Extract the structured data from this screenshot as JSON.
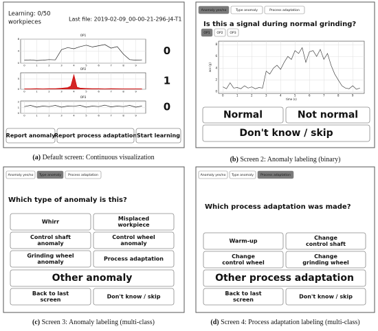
{
  "panel_a": {
    "learning": "Learning: 0/50",
    "learning_unit": "workpieces",
    "last_file": "Last file: 2019-02-09_00-00-21-296-J4-T1",
    "charts": [
      {
        "title": "OP1",
        "xlim": [
          -0.3,
          9.8
        ],
        "xticks": [
          0,
          1,
          2,
          3,
          4,
          5,
          6,
          7,
          8,
          9
        ],
        "ylim": [
          0,
          8
        ],
        "yticks": [
          0,
          4,
          8
        ],
        "grid": true,
        "color": "#222222",
        "area": false,
        "x": [
          0,
          0.5,
          1,
          1.5,
          2,
          2.5,
          3,
          3.5,
          4,
          4.5,
          5,
          5.5,
          6,
          6.5,
          7,
          7.5,
          8,
          8.5,
          9,
          9.5
        ],
        "values": [
          1,
          1.1,
          0.9,
          1,
          1.2,
          1.1,
          4.5,
          5.2,
          4.8,
          5.5,
          6,
          5.4,
          5.8,
          6.2,
          5,
          5.5,
          3,
          1.2,
          1,
          1.1
        ],
        "count": 0,
        "count_color": "#2e8b2e"
      },
      {
        "title": "OP2",
        "xlim": [
          -0.3,
          9.8
        ],
        "xticks": [
          0,
          1,
          2,
          3,
          4,
          5,
          6,
          7,
          8,
          9
        ],
        "ylim": [
          0,
          8
        ],
        "yticks": [
          0,
          5
        ],
        "grid": true,
        "color": "#cc0000",
        "area": true,
        "x": [
          0,
          0.5,
          1,
          1.5,
          2,
          2.5,
          3,
          3.5,
          3.75,
          4,
          4.25,
          4.5,
          5,
          5.5,
          6,
          6.5,
          7,
          8,
          9,
          9.5
        ],
        "values": [
          0.2,
          0.2,
          0.3,
          0.2,
          0.3,
          0.3,
          0.5,
          0.8,
          1.5,
          7,
          1,
          0.6,
          0.4,
          0.3,
          0.3,
          0.2,
          0.3,
          0.2,
          0.2,
          0.2
        ],
        "count": 1,
        "count_color": "#d62020"
      },
      {
        "title": "OP3",
        "xlim": [
          -0.3,
          9.8
        ],
        "xticks": [
          0,
          1,
          2,
          3,
          4,
          5,
          6,
          7,
          8,
          9
        ],
        "ylim": [
          0,
          2.2
        ],
        "yticks": [
          0,
          1,
          2
        ],
        "grid": true,
        "color": "#222222",
        "area": false,
        "x": [
          0,
          0.5,
          1,
          1.5,
          2,
          2.5,
          3,
          3.5,
          4,
          4.5,
          5,
          5.5,
          6,
          6.5,
          7,
          7.5,
          8,
          8.5,
          9,
          9.5
        ],
        "values": [
          1.2,
          1.4,
          1.1,
          1.3,
          1.2,
          1.4,
          1.1,
          1.3,
          1.25,
          1.4,
          1.1,
          1.3,
          1.2,
          1.45,
          1.15,
          1.3,
          1.2,
          1.4,
          1.1,
          1.3
        ],
        "count": 0,
        "count_color": "#2e8b2e"
      }
    ],
    "buttons": [
      "Report anomaly",
      "Report process adaptation",
      "Start learning"
    ],
    "caption": {
      "label": "(a)",
      "text": "Default screen: Continuous visualization"
    }
  },
  "panel_b": {
    "tabs": [
      "Anomaly yes/no",
      "Type anomaly",
      "Process adaptation"
    ],
    "selected_tab": 0,
    "question": "Is this a signal during normal grinding?",
    "op_tabs": [
      "OP1",
      "OP2",
      "OP3"
    ],
    "selected_op": 0,
    "chart": {
      "xlim": [
        -0.3,
        9.8
      ],
      "xticks": [
        0,
        1,
        2,
        3,
        4,
        5,
        6,
        7,
        8,
        9
      ],
      "ylim": [
        -0.3,
        8.6
      ],
      "yticks": [
        0,
        2,
        4,
        6,
        8
      ],
      "grid": true,
      "color": "#444444",
      "area": false,
      "x_label": "time (s)",
      "y_label": "acc (g)",
      "x": [
        0,
        0.25,
        0.5,
        0.75,
        1,
        1.25,
        1.5,
        1.75,
        2,
        2.25,
        2.5,
        2.75,
        3,
        3.25,
        3.5,
        3.75,
        4,
        4.25,
        4.5,
        4.75,
        5,
        5.25,
        5.5,
        5.75,
        6,
        6.25,
        6.5,
        6.75,
        7,
        7.25,
        7.5,
        7.75,
        8,
        8.25,
        8.5,
        8.75,
        9,
        9.25,
        9.5
      ],
      "values": [
        0.8,
        0.5,
        1.5,
        0.6,
        0.7,
        0.5,
        1,
        0.6,
        0.8,
        0.5,
        0.7,
        0.6,
        3.5,
        3,
        4,
        4.5,
        3.8,
        5,
        6,
        5.5,
        7,
        6.5,
        7.5,
        5,
        6.8,
        7,
        6,
        7.2,
        5.5,
        6.5,
        4.5,
        3,
        2,
        1,
        0.6,
        0.5,
        1,
        0.4,
        0.6
      ]
    },
    "buttons": [
      "Normal",
      "Not normal"
    ],
    "big_button": "Don't know / skip",
    "caption": {
      "label": "(b)",
      "text": "Screen 2: Anomaly labeling (binary)"
    }
  },
  "panel_c": {
    "tabs": [
      "Anomaly yes/no",
      "Type anomaly",
      "Process adaptation"
    ],
    "selected_tab": 1,
    "question": "Which type of anomaly is this?",
    "buttons": [
      [
        "Whirr"
      ],
      [
        "Misplaced",
        "workpiece"
      ],
      [
        "Control shaft",
        "anomaly"
      ],
      [
        "Control wheel",
        "anomaly"
      ],
      [
        "Grinding wheel",
        "anomaly"
      ],
      [
        "Process adaptation"
      ]
    ],
    "big_button": "Other anomaly",
    "bottom_buttons": [
      [
        "Back to last",
        "screen"
      ],
      [
        "Don't know / skip"
      ]
    ],
    "caption": {
      "label": "(c)",
      "text": "Screen 3: Anomaly labeling (multi-class)"
    }
  },
  "panel_d": {
    "tabs": [
      "Anomaly yes/no",
      "Type anomaly",
      "Process adaptation"
    ],
    "selected_tab": 2,
    "question": "Which process adaptation was made?",
    "buttons": [
      [
        "Warm-up"
      ],
      [
        "Change",
        "control shaft"
      ],
      [
        "Change",
        "control wheel"
      ],
      [
        "Change",
        "grinding wheel"
      ]
    ],
    "big_button": "Other process adaptation",
    "bottom_buttons": [
      [
        "Back to last",
        "screen"
      ],
      [
        "Don't know / skip"
      ]
    ],
    "caption": {
      "label": "(d)",
      "text": "Screen 4: Process adaptation labeling (multi-class)"
    }
  }
}
